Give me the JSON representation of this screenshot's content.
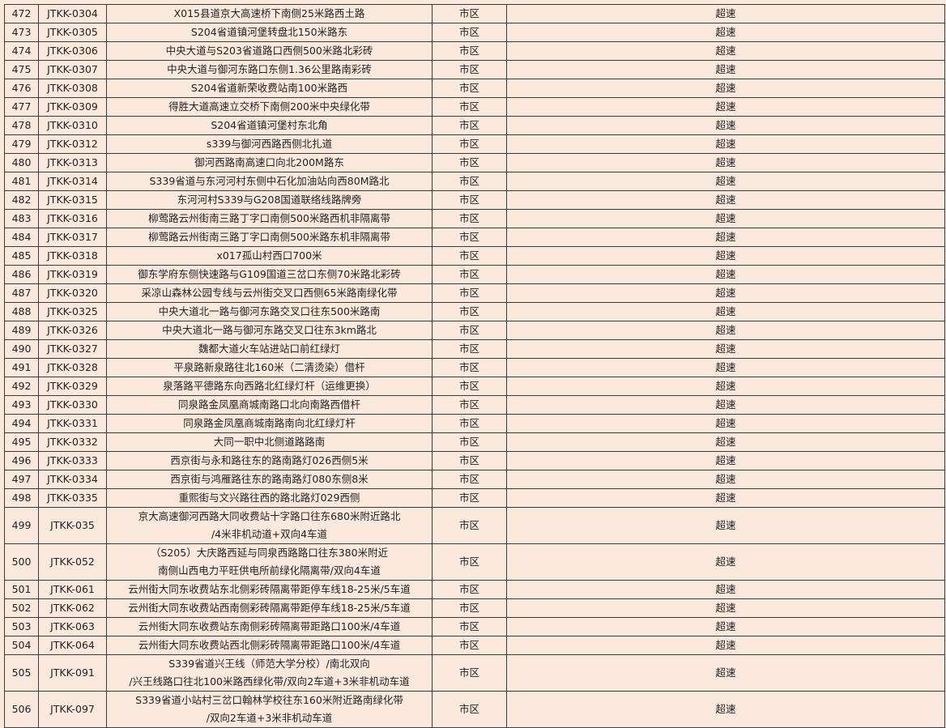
{
  "rows": [
    {
      "no": "472",
      "code": "JTKK-0304",
      "location": [
        "X015县道京大高速桥下南侧25米路西土路"
      ],
      "district": "市区",
      "type": "超速"
    },
    {
      "no": "473",
      "code": "JTKK-0305",
      "location": [
        "S204省道镇河堡转盘北150米路东"
      ],
      "district": "市区",
      "type": "超速"
    },
    {
      "no": "474",
      "code": "JTKK-0306",
      "location": [
        "中央大道与S203省道路口西侧500米路北彩砖"
      ],
      "district": "市区",
      "type": "超速"
    },
    {
      "no": "475",
      "code": "JTKK-0307",
      "location": [
        "中央大道与御河东路口东侧1.36公里路南彩砖"
      ],
      "district": "市区",
      "type": "超速"
    },
    {
      "no": "476",
      "code": "JTKK-0308",
      "location": [
        "S204省道新荣收费站南100米路西"
      ],
      "district": "市区",
      "type": "超速"
    },
    {
      "no": "477",
      "code": "JTKK-0309",
      "location": [
        "得胜大道高速立交桥下南侧200米中央绿化带"
      ],
      "district": "市区",
      "type": "超速"
    },
    {
      "no": "478",
      "code": "JTKK-0310",
      "location": [
        "S204省道镇河堡村东北角"
      ],
      "district": "市区",
      "type": "超速"
    },
    {
      "no": "479",
      "code": "JTKK-0312",
      "location": [
        "s339与御河西路西侧北扎道"
      ],
      "district": "市区",
      "type": "超速"
    },
    {
      "no": "480",
      "code": "JTKK-0313",
      "location": [
        "御河西路南高速口向北200M路东"
      ],
      "district": "市区",
      "type": "超速"
    },
    {
      "no": "481",
      "code": "JTKK-0314",
      "location": [
        "S339省道与东河河村东侧中石化加油站向西80M路北"
      ],
      "district": "市区",
      "type": "超速"
    },
    {
      "no": "482",
      "code": "JTKK-0315",
      "location": [
        "东河河村S339与G208国道联络线路牌旁"
      ],
      "district": "市区",
      "type": "超速"
    },
    {
      "no": "483",
      "code": "JTKK-0316",
      "location": [
        "柳莺路云州街南三路丁字口南侧500米路西机非隔离带"
      ],
      "district": "市区",
      "type": "超速"
    },
    {
      "no": "484",
      "code": "JTKK-0317",
      "location": [
        "柳莺路云州街南三路丁字口南侧500米路东机非隔离带"
      ],
      "district": "市区",
      "type": "超速"
    },
    {
      "no": "485",
      "code": "JTKK-0318",
      "location": [
        "x017孤山村西口700米"
      ],
      "district": "市区",
      "type": "超速"
    },
    {
      "no": "486",
      "code": "JTKK-0319",
      "location": [
        "御东学府东侧快速路与G109国道三岔口东侧70米路北彩砖"
      ],
      "district": "市区",
      "type": "超速"
    },
    {
      "no": "487",
      "code": "JTKK-0320",
      "location": [
        "采凉山森林公园专线与云州街交叉口西侧65米路南绿化带"
      ],
      "district": "市区",
      "type": "超速"
    },
    {
      "no": "488",
      "code": "JTKK-0325",
      "location": [
        "中央大道北一路与御河东路交叉口往东500米路南"
      ],
      "district": "市区",
      "type": "超速"
    },
    {
      "no": "489",
      "code": "JTKK-0326",
      "location": [
        "中央大道北一路与御河东路交叉口往东3km路北"
      ],
      "district": "市区",
      "type": "超速"
    },
    {
      "no": "490",
      "code": "JTKK-0327",
      "location": [
        "魏都大道火车站进站口前红绿灯"
      ],
      "district": "市区",
      "type": "超速"
    },
    {
      "no": "491",
      "code": "JTKK-0328",
      "location": [
        "平泉路新泉路往北160米（二清烫染）借杆"
      ],
      "district": "市区",
      "type": "超速"
    },
    {
      "no": "492",
      "code": "JTKK-0329",
      "location": [
        "泉落路平德路东向西路北红绿灯杆（运维更换）"
      ],
      "district": "市区",
      "type": "超速"
    },
    {
      "no": "493",
      "code": "JTKK-0330",
      "location": [
        "同泉路金凤凰商城南路口北向南路西借杆"
      ],
      "district": "市区",
      "type": "超速"
    },
    {
      "no": "494",
      "code": "JTKK-0331",
      "location": [
        "同泉路金凤凰商城南路南向北红绿灯杆"
      ],
      "district": "市区",
      "type": "超速"
    },
    {
      "no": "495",
      "code": "JTKK-0332",
      "location": [
        "大同一职中北侧道路路南"
      ],
      "district": "市区",
      "type": "超速"
    },
    {
      "no": "496",
      "code": "JTKK-0333",
      "location": [
        "西京街与永和路往东的路南路灯026西侧5米"
      ],
      "district": "市区",
      "type": "超速"
    },
    {
      "no": "497",
      "code": "JTKK-0334",
      "location": [
        "西京街与鸿雁路往东的路南路灯080东侧8米"
      ],
      "district": "市区",
      "type": "超速"
    },
    {
      "no": "498",
      "code": "JTKK-0335",
      "location": [
        "重熙街与文兴路往西的路北路灯029西侧"
      ],
      "district": "市区",
      "type": "超速"
    },
    {
      "no": "499",
      "code": "JTKK-035",
      "location": [
        "京大高速御河西路大同收费站十字路口往东680米附近路北",
        "/4米非机动道+双向4车道"
      ],
      "district": "市区",
      "type": "超速"
    },
    {
      "no": "500",
      "code": "JTKK-052",
      "location": [
        "（S205）大庆路西延与同泉西路路口往东380米附近",
        "南侧山西电力平旺供电所前绿化隔离带/双向4车道"
      ],
      "district": "市区",
      "type": "超速"
    },
    {
      "no": "501",
      "code": "JTKK-061",
      "location": [
        "云州街大同东收费站东北侧彩砖隔离带距停车线18-25米/5车道"
      ],
      "district": "市区",
      "type": "超速"
    },
    {
      "no": "502",
      "code": "JTKK-062",
      "location": [
        "云州街大同东收费站西南侧彩砖隔离带距停车线18-25米/5车道"
      ],
      "district": "市区",
      "type": "超速"
    },
    {
      "no": "503",
      "code": "JTKK-063",
      "location": [
        "云州街大同东收费站东南侧彩砖隔离带距路口100米/4车道"
      ],
      "district": "市区",
      "type": "超速"
    },
    {
      "no": "504",
      "code": "JTKK-064",
      "location": [
        "云州街大同东收费站西北侧彩砖隔离带距路口100米/4车道"
      ],
      "district": "市区",
      "type": "超速"
    },
    {
      "no": "505",
      "code": "JTKK-091",
      "location": [
        "S339省道兴王线（师范大学分校）/南北双向",
        "/兴王线路口往北100米路西绿化带/双向2车道+3米非机动车道"
      ],
      "district": "市区",
      "type": "超速"
    },
    {
      "no": "506",
      "code": "JTKK-097",
      "location": [
        "S339省道小站村三岔口翰林学校往东160米附近路南绿化带",
        "/双向2车道+3米非机动车道"
      ],
      "district": "市区",
      "type": "超速"
    }
  ]
}
